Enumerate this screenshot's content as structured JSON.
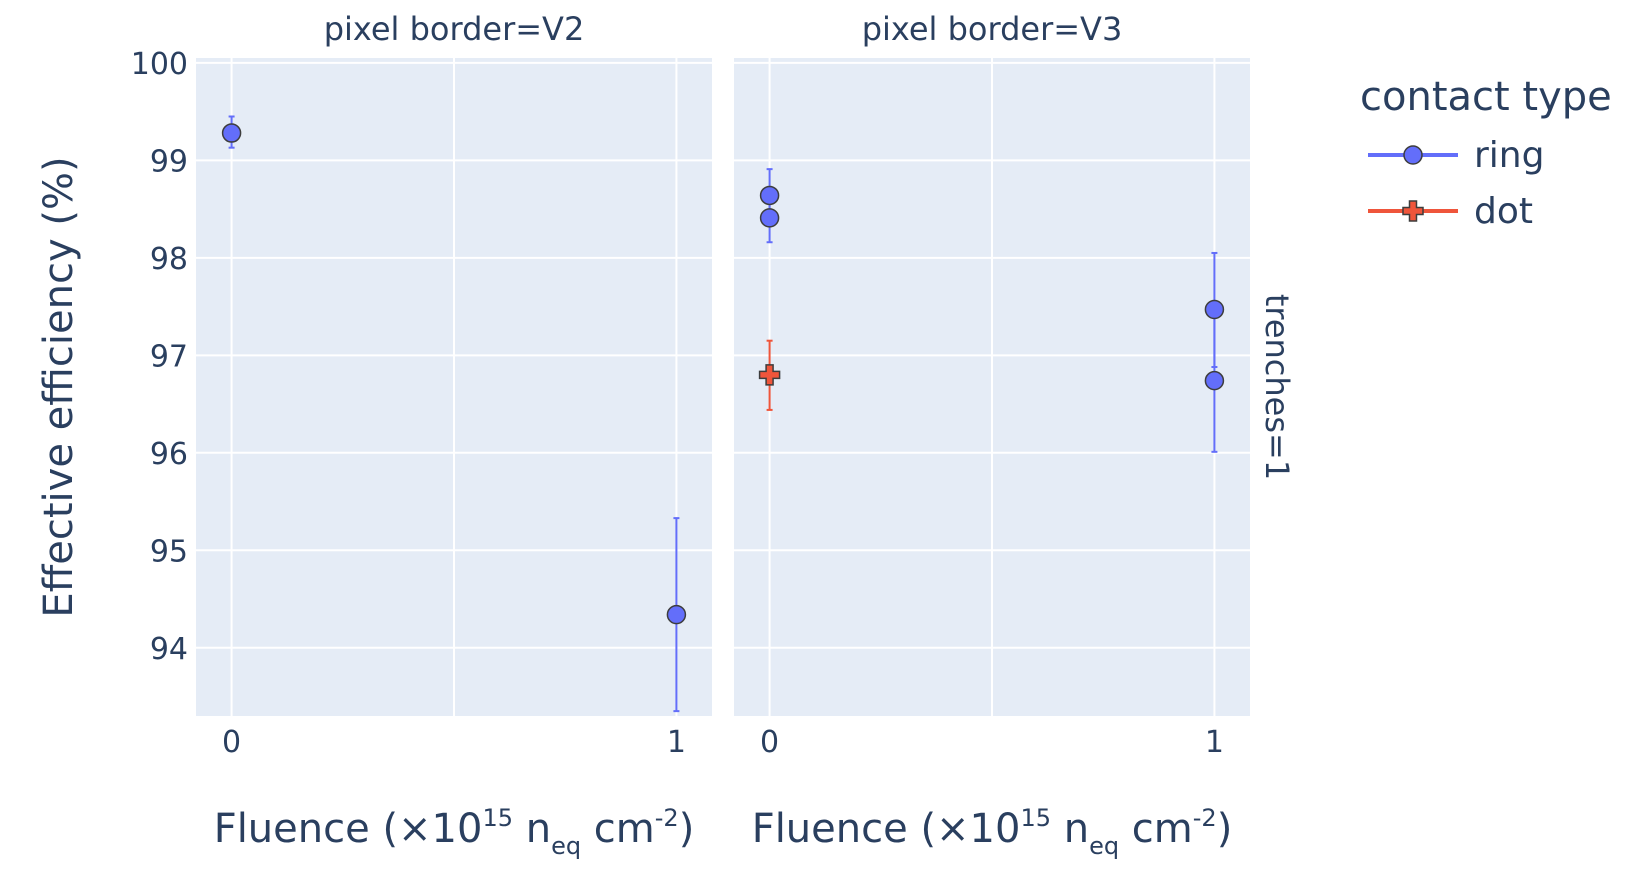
{
  "chart_data": {
    "type": "scatter",
    "ylabel": "Effective efficiency (%)",
    "xlabel": {
      "main": "Fluence (×10",
      "sup": "15",
      "unit_n": " n",
      "sub": "eq",
      "unit_cm": " cm",
      "sup2": "-2",
      "close": ")"
    },
    "ylim": [
      93.3,
      100.05
    ],
    "y_ticks": [
      94,
      95,
      96,
      97,
      98,
      99,
      100
    ],
    "xlim": [
      -0.08,
      1.08
    ],
    "x_ticks": [
      0,
      1
    ],
    "grid": true,
    "x_midline": 0.5,
    "row_label": "trenches=1",
    "legend": {
      "title": "contact type",
      "placement": "right",
      "items": [
        {
          "name": "ring",
          "color": "#636efa",
          "marker": "circle"
        },
        {
          "name": "dot",
          "color": "#ef553b",
          "marker": "cross"
        }
      ]
    },
    "panels": [
      {
        "title": "pixel border=V2",
        "series": [
          {
            "name": "ring",
            "points": [
              {
                "x": 0,
                "y": 99.28,
                "err_low": 99.13,
                "err_high": 99.45
              },
              {
                "x": 1,
                "y": 94.34,
                "err_low": 93.35,
                "err_high": 95.33
              }
            ]
          }
        ]
      },
      {
        "title": "pixel border=V3",
        "series": [
          {
            "name": "ring",
            "points": [
              {
                "x": 0,
                "y": 98.64,
                "err_low": 98.4,
                "err_high": 98.91
              },
              {
                "x": 0,
                "y": 98.41,
                "err_low": 98.16,
                "err_high": 98.64
              },
              {
                "x": 1,
                "y": 97.47,
                "err_low": 96.88,
                "err_high": 98.05
              },
              {
                "x": 1,
                "y": 96.74,
                "err_low": 96.01,
                "err_high": 97.47
              }
            ]
          },
          {
            "name": "dot",
            "points": [
              {
                "x": 0,
                "y": 96.8,
                "err_low": 96.44,
                "err_high": 97.15
              }
            ]
          }
        ]
      }
    ]
  }
}
